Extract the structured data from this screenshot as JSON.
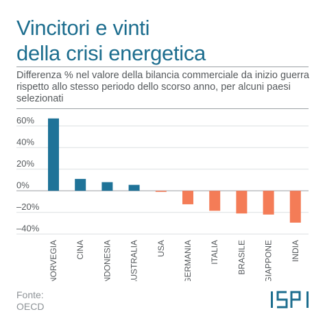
{
  "title_line1": "Vincitori e vinti",
  "title_line2": "della crisi energetica",
  "subtitle": "Differenza % nel valore della bilancia commerciale da inizio guerra rispetto allo stesso periodo dello scorso anno, per alcuni paesi selezionati",
  "source_label": "Fonte:",
  "source_value": "OECD",
  "logo_text": "ISPI",
  "colors": {
    "positive": "#1f7398",
    "negative": "#f47c57",
    "title": "#1c6d8e"
  },
  "chart_data": {
    "type": "bar",
    "categories": [
      "NORVEGIA",
      "CINA",
      "INDONESIA",
      "AUSTRALIA",
      "USA",
      "GERMANIA",
      "ITALIA",
      "BRASILE",
      "GIAPPONE",
      "INDIA"
    ],
    "values": [
      67,
      11,
      8,
      5.5,
      -1,
      -12.5,
      -18.5,
      -21,
      -22,
      -29.5
    ],
    "ylim": [
      -43,
      70
    ],
    "yticks": [
      60,
      40,
      20,
      0,
      -20,
      -40
    ],
    "ytick_labels": [
      "60%",
      "40%",
      "20%",
      "0%",
      "–20%",
      "–40%"
    ],
    "xlabel": "",
    "ylabel": "",
    "grid": true,
    "legend": "none"
  }
}
